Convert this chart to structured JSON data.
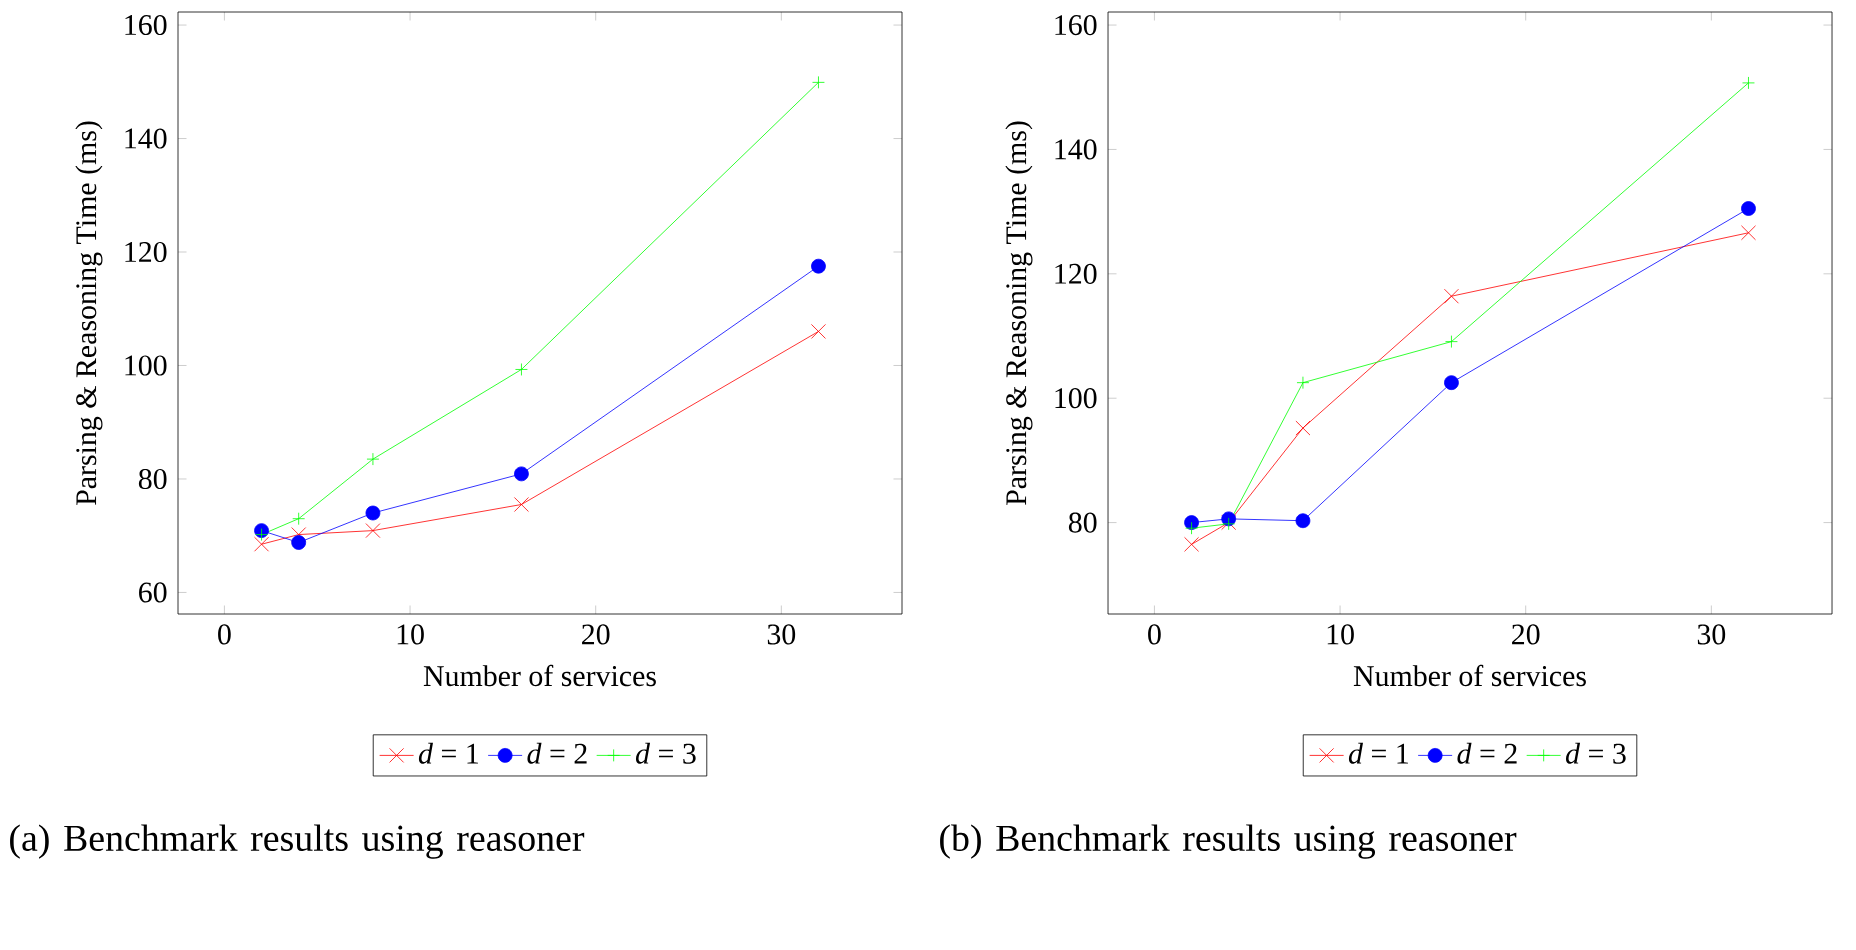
{
  "chart_data": [
    {
      "type": "line",
      "xlabel": "Number of services",
      "ylabel": "Parsing & Reasoning Time (ms)",
      "x": [
        2,
        4,
        8,
        16,
        32
      ],
      "series": [
        {
          "name": "*d* = 1",
          "color": "#ff0000",
          "marker": "cross",
          "values": [
            68.5,
            70.2,
            70.9,
            75.5,
            106.0
          ]
        },
        {
          "name": "*d* = 2",
          "color": "#0000ff",
          "marker": "circle",
          "values": [
            70.9,
            68.8,
            74.0,
            80.9,
            117.5
          ]
        },
        {
          "name": "*d* = 3",
          "color": "#00ff00",
          "marker": "plus",
          "values": [
            70.2,
            73.0,
            83.5,
            99.3,
            149.9
          ]
        }
      ],
      "xlim": [
        -2.5,
        36.5
      ],
      "ylim": [
        56.2,
        162.3
      ],
      "xticks": [
        0,
        10,
        20,
        30
      ],
      "yticks": [
        60,
        80,
        100,
        120,
        140,
        160
      ],
      "legend": "bottom",
      "grid": false,
      "annotations": [
        "(a) Benchmark results using reasoner"
      ]
    },
    {
      "type": "line",
      "xlabel": "Number of services",
      "ylabel": "Parsing & Reasoning Time (ms)",
      "x": [
        2,
        4,
        8,
        16,
        32
      ],
      "series": [
        {
          "name": "*d* = 1",
          "color": "#ff0000",
          "marker": "cross",
          "values": [
            76.5,
            80.0,
            95.2,
            116.4,
            126.6
          ]
        },
        {
          "name": "*d* = 2",
          "color": "#0000ff",
          "marker": "circle",
          "values": [
            80.0,
            80.6,
            80.3,
            102.5,
            130.5
          ]
        },
        {
          "name": "*d* = 3",
          "color": "#00ff00",
          "marker": "plus",
          "values": [
            79.1,
            79.8,
            102.5,
            109.1,
            150.7
          ]
        }
      ],
      "xlim": [
        -2.5,
        36.5
      ],
      "ylim": [
        65.3,
        162.1
      ],
      "xticks": [
        0,
        10,
        20,
        30
      ],
      "yticks": [
        80,
        100,
        120,
        140,
        160
      ],
      "legend": "bottom",
      "grid": false,
      "annotations": [
        "(b) Benchmark results using reasoner"
      ]
    }
  ]
}
